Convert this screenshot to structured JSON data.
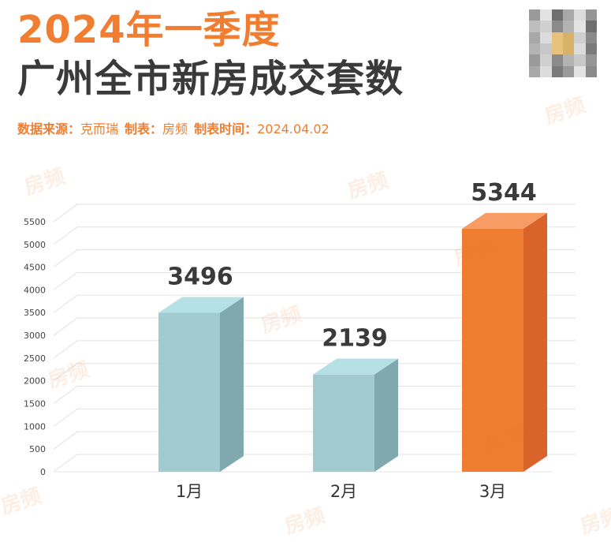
{
  "header": {
    "title_line1": "2024年一季度",
    "title_line2": "广州全市新房成交套数"
  },
  "meta": {
    "source_label": "数据来源：",
    "source_value": "克而瑞",
    "maker_label": "制表：",
    "maker_value": "房频",
    "time_label": "制表时间：",
    "time_value": "2024.04.02"
  },
  "watermark": "房频",
  "colors": {
    "accent": "#f07d30",
    "bar_teal_front": "#a2cbd1",
    "bar_teal_side": "#7fa9ae",
    "bar_teal_top": "#b5e1e6",
    "bar_orange_front": "#ee7d30",
    "bar_orange_side": "#d9632a",
    "bar_orange_top": "#f69c64",
    "title_dark": "#3a3a3a"
  },
  "chart_data": {
    "type": "bar",
    "title": "广州全市新房成交套数",
    "categories": [
      "1月",
      "2月",
      "3月"
    ],
    "values": [
      3496,
      2139,
      5344
    ],
    "data_labels": [
      "3496",
      "2139",
      "5344"
    ],
    "highlight_index": 2,
    "ylim": [
      0,
      5500
    ],
    "ytick_labels": [
      "0",
      "500",
      "1000",
      "1500",
      "2000",
      "2500",
      "3000",
      "3500",
      "4000",
      "4500",
      "5000",
      "5500"
    ],
    "grid": true,
    "legend": "none",
    "style": "3d"
  }
}
